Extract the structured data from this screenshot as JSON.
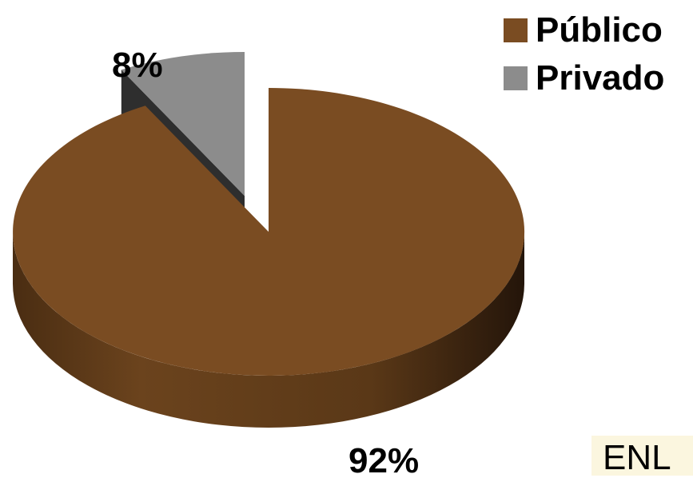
{
  "chart_data": {
    "type": "pie",
    "title": "",
    "categories": [
      "Público",
      "Privado"
    ],
    "values": [
      92,
      8
    ],
    "data_labels": [
      "92%",
      "8%"
    ],
    "exploded": "Privado",
    "three_d": true,
    "legend_position": "top-right",
    "colors": [
      "#7a4c22",
      "#8c8c8c"
    ]
  },
  "legend": {
    "items": [
      {
        "label": "Público",
        "color": "#7a4c22"
      },
      {
        "label": "Privado",
        "color": "#8c8c8c"
      }
    ]
  },
  "source": {
    "label": "ENL"
  }
}
